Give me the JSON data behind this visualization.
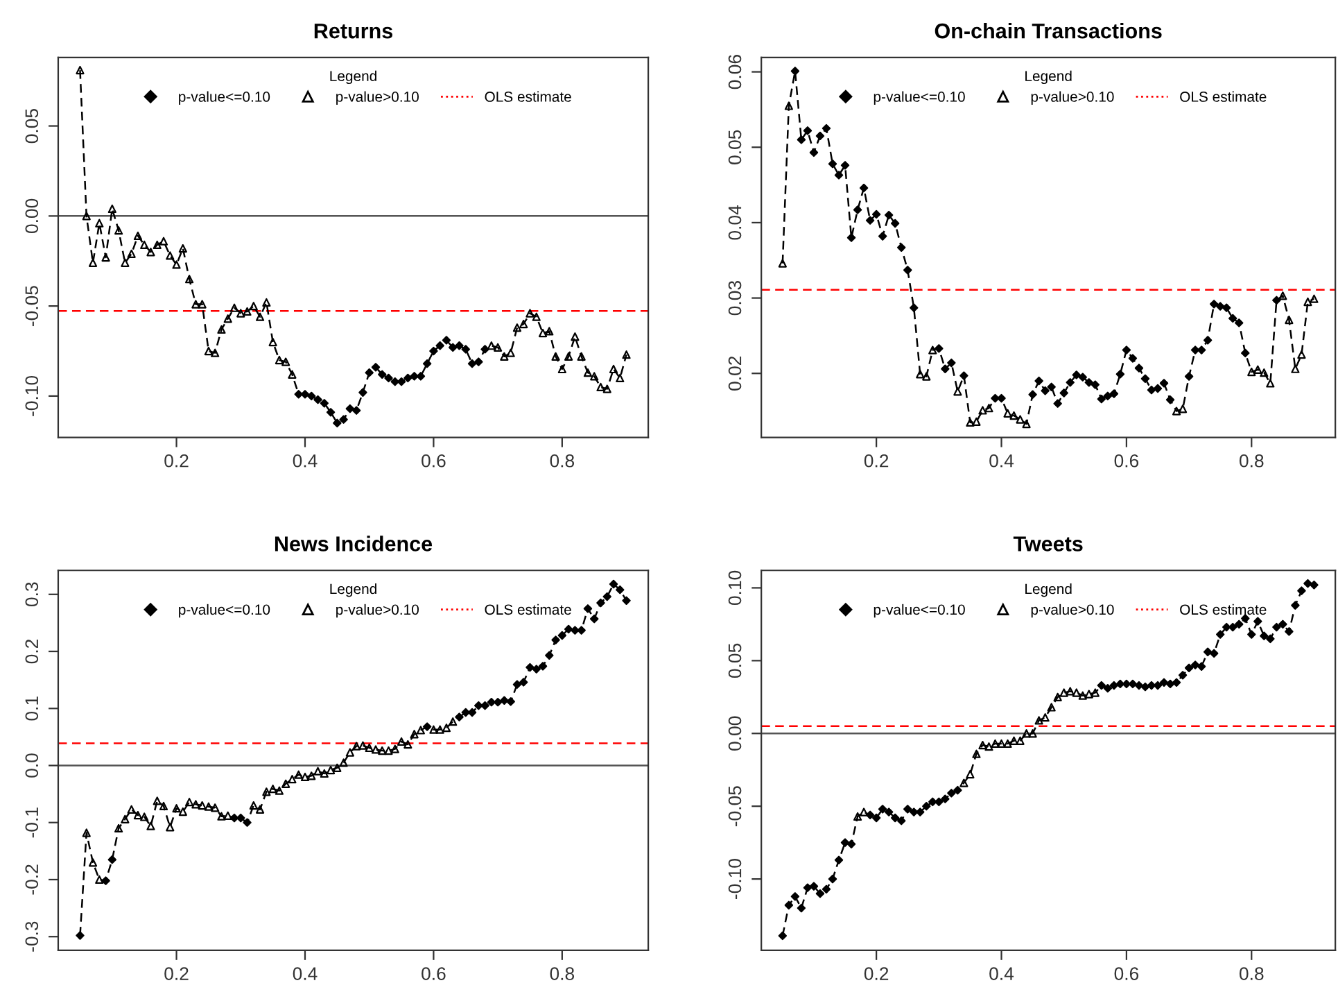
{
  "chart_data": [
    {
      "type": "line",
      "title": "Returns",
      "legend": "top",
      "legend_title": "Legend",
      "grid": false,
      "x": [
        0.05,
        0.06,
        0.07,
        0.08,
        0.09,
        0.1,
        0.11,
        0.12,
        0.13,
        0.14,
        0.15,
        0.16,
        0.17,
        0.18,
        0.19,
        0.2,
        0.21,
        0.22,
        0.23,
        0.24,
        0.25,
        0.26,
        0.27,
        0.28,
        0.29,
        0.3,
        0.31,
        0.32,
        0.33,
        0.34,
        0.35,
        0.36,
        0.37,
        0.38,
        0.39,
        0.4,
        0.41,
        0.42,
        0.43,
        0.44,
        0.45,
        0.46,
        0.47,
        0.48,
        0.49,
        0.5,
        0.51,
        0.52,
        0.53,
        0.54,
        0.55,
        0.56,
        0.57,
        0.58,
        0.59,
        0.6,
        0.61,
        0.62,
        0.63,
        0.64,
        0.65,
        0.66,
        0.67,
        0.68,
        0.69,
        0.7,
        0.71,
        0.72,
        0.73,
        0.74,
        0.75,
        0.76,
        0.77,
        0.78,
        0.79,
        0.8,
        0.81,
        0.82,
        0.83,
        0.84,
        0.85,
        0.86,
        0.87,
        0.88,
        0.89,
        0.9
      ],
      "xlim": [
        0.016,
        0.934
      ],
      "xticks": [
        0.2,
        0.4,
        0.6,
        0.8
      ],
      "ylim": [
        -0.123,
        0.088
      ],
      "yticks": [
        {
          "value": -0.1,
          "label": "-0.10"
        },
        {
          "value": -0.05,
          "label": "-0.05"
        },
        {
          "value": 0.0,
          "label": "0.00"
        },
        {
          "value": 0.05,
          "label": "0.05"
        }
      ],
      "ref_lines": [
        {
          "axis": "y",
          "value": 0.0,
          "color": "#555555",
          "line_style": "solid"
        },
        {
          "axis": "y",
          "value": -0.0527,
          "label": "OLS estimate",
          "color": "#ff0000",
          "line_style": "dashed"
        }
      ],
      "series": [
        {
          "color": "#000000",
          "line_style": "dashed",
          "marker": "none",
          "values": [
            0.081,
            0.0,
            -0.026,
            -0.004,
            -0.023,
            0.004,
            -0.008,
            -0.026,
            -0.021,
            -0.011,
            -0.016,
            -0.02,
            -0.016,
            -0.014,
            -0.022,
            -0.027,
            -0.018,
            -0.035,
            -0.049,
            -0.049,
            -0.075,
            -0.076,
            -0.063,
            -0.057,
            -0.051,
            -0.054,
            -0.053,
            -0.05,
            -0.056,
            -0.048,
            -0.07,
            -0.08,
            -0.081,
            -0.088,
            -0.099,
            -0.099,
            -0.1,
            -0.102,
            -0.104,
            -0.109,
            -0.115,
            -0.113,
            -0.107,
            -0.108,
            -0.098,
            -0.087,
            -0.084,
            -0.088,
            -0.09,
            -0.092,
            -0.092,
            -0.09,
            -0.089,
            -0.089,
            -0.082,
            -0.075,
            -0.072,
            -0.069,
            -0.073,
            -0.072,
            -0.074,
            -0.082,
            -0.081,
            -0.074,
            -0.072,
            -0.073,
            -0.078,
            -0.076,
            -0.062,
            -0.06,
            -0.054,
            -0.056,
            -0.065,
            -0.064,
            -0.078,
            -0.085,
            -0.078,
            -0.067,
            -0.078,
            -0.087,
            -0.089,
            -0.095,
            -0.096,
            -0.085,
            -0.09,
            -0.077
          ]
        },
        {
          "type": "scatter",
          "name": "p-value<=0.10",
          "color": "#000000",
          "marker": "diamond",
          "values": [
            null,
            null,
            null,
            null,
            null,
            null,
            null,
            null,
            null,
            null,
            null,
            null,
            null,
            null,
            null,
            null,
            null,
            null,
            null,
            null,
            null,
            null,
            null,
            null,
            null,
            null,
            null,
            null,
            null,
            null,
            null,
            null,
            null,
            null,
            -0.099,
            -0.099,
            -0.1,
            -0.102,
            -0.104,
            -0.109,
            -0.115,
            -0.113,
            -0.107,
            -0.108,
            -0.098,
            -0.087,
            -0.084,
            -0.088,
            -0.09,
            -0.092,
            -0.092,
            -0.09,
            -0.089,
            -0.089,
            -0.082,
            -0.075,
            -0.072,
            -0.069,
            -0.073,
            -0.072,
            -0.074,
            -0.082,
            -0.081,
            -0.074,
            null,
            null,
            null,
            null,
            null,
            null,
            null,
            null,
            null,
            null,
            null,
            null,
            null,
            null,
            null,
            null,
            null,
            null,
            null,
            null,
            null,
            null
          ]
        },
        {
          "type": "scatter",
          "name": "p-value>0.10",
          "color": "#000000",
          "marker": "triangle",
          "values": [
            0.081,
            0.0,
            -0.026,
            -0.004,
            -0.023,
            0.004,
            -0.008,
            -0.026,
            -0.021,
            -0.011,
            -0.016,
            -0.02,
            -0.016,
            -0.014,
            -0.022,
            -0.027,
            -0.018,
            -0.035,
            -0.049,
            -0.049,
            -0.075,
            -0.076,
            -0.063,
            -0.057,
            -0.051,
            -0.054,
            -0.053,
            -0.05,
            -0.056,
            -0.048,
            -0.07,
            -0.08,
            -0.081,
            -0.088,
            null,
            null,
            null,
            null,
            null,
            null,
            null,
            null,
            null,
            null,
            null,
            null,
            null,
            null,
            null,
            null,
            null,
            null,
            null,
            null,
            null,
            null,
            null,
            null,
            null,
            null,
            null,
            null,
            null,
            null,
            -0.072,
            -0.073,
            -0.078,
            -0.076,
            -0.062,
            -0.06,
            -0.054,
            -0.056,
            -0.065,
            -0.064,
            -0.078,
            -0.085,
            -0.078,
            -0.067,
            -0.078,
            -0.087,
            -0.089,
            -0.095,
            -0.096,
            -0.085,
            -0.09,
            -0.077
          ]
        }
      ]
    },
    {
      "type": "line",
      "title": "On-chain Transactions",
      "legend": "top",
      "legend_title": "Legend",
      "grid": false,
      "x": [
        0.05,
        0.06,
        0.07,
        0.08,
        0.09,
        0.1,
        0.11,
        0.12,
        0.13,
        0.14,
        0.15,
        0.16,
        0.17,
        0.18,
        0.19,
        0.2,
        0.21,
        0.22,
        0.23,
        0.24,
        0.25,
        0.26,
        0.27,
        0.28,
        0.29,
        0.3,
        0.31,
        0.32,
        0.33,
        0.34,
        0.35,
        0.36,
        0.37,
        0.38,
        0.39,
        0.4,
        0.41,
        0.42,
        0.43,
        0.44,
        0.45,
        0.46,
        0.47,
        0.48,
        0.49,
        0.5,
        0.51,
        0.52,
        0.53,
        0.54,
        0.55,
        0.56,
        0.57,
        0.58,
        0.59,
        0.6,
        0.61,
        0.62,
        0.63,
        0.64,
        0.65,
        0.66,
        0.67,
        0.68,
        0.69,
        0.7,
        0.71,
        0.72,
        0.73,
        0.74,
        0.75,
        0.76,
        0.77,
        0.78,
        0.79,
        0.8,
        0.81,
        0.82,
        0.83,
        0.84,
        0.85,
        0.86,
        0.87,
        0.88,
        0.89,
        0.9
      ],
      "xlim": [
        0.016,
        0.934
      ],
      "xticks": [
        0.2,
        0.4,
        0.6,
        0.8
      ],
      "ylim": [
        0.0115,
        0.0619
      ],
      "yticks": [
        {
          "value": 0.02,
          "label": "0.02"
        },
        {
          "value": 0.03,
          "label": "0.03"
        },
        {
          "value": 0.04,
          "label": "0.04"
        },
        {
          "value": 0.05,
          "label": "0.05"
        },
        {
          "value": 0.06,
          "label": "0.06"
        }
      ],
      "ref_lines": [
        {
          "axis": "y",
          "value": 0.0311,
          "label": "OLS estimate",
          "color": "#ff0000",
          "line_style": "dashed"
        }
      ],
      "series": [
        {
          "color": "#000000",
          "line_style": "dashed",
          "marker": "none",
          "values": [
            0.0346,
            0.0555,
            0.0601,
            0.051,
            0.0522,
            0.0493,
            0.0515,
            0.0525,
            0.0478,
            0.0463,
            0.0476,
            0.038,
            0.0417,
            0.0446,
            0.0403,
            0.0411,
            0.0382,
            0.041,
            0.0399,
            0.0367,
            0.0337,
            0.0287,
            0.0199,
            0.0196,
            0.0231,
            0.0233,
            0.0206,
            0.0214,
            0.0176,
            0.0197,
            0.0135,
            0.0136,
            0.0151,
            0.0154,
            0.0167,
            0.0167,
            0.0147,
            0.0144,
            0.0139,
            0.0133,
            0.0172,
            0.019,
            0.0177,
            0.0182,
            0.016,
            0.0174,
            0.0188,
            0.0198,
            0.0195,
            0.0188,
            0.0185,
            0.0166,
            0.017,
            0.0173,
            0.0199,
            0.0231,
            0.022,
            0.0207,
            0.0193,
            0.0178,
            0.018,
            0.0187,
            0.0165,
            0.015,
            0.0153,
            0.0196,
            0.0231,
            0.0231,
            0.0244,
            0.0292,
            0.0289,
            0.0287,
            0.0273,
            0.0267,
            0.0227,
            0.0202,
            0.0205,
            0.0201,
            0.0187,
            0.0297,
            0.0303,
            0.0271,
            0.0206,
            0.0225,
            0.0295,
            0.0299
          ]
        },
        {
          "type": "scatter",
          "name": "p-value<=0.10",
          "color": "#000000",
          "marker": "diamond",
          "values": [
            null,
            null,
            0.0601,
            0.051,
            0.0522,
            0.0493,
            0.0515,
            0.0525,
            0.0478,
            0.0463,
            0.0476,
            0.038,
            0.0417,
            0.0446,
            0.0403,
            0.0411,
            0.0382,
            0.041,
            0.0399,
            0.0367,
            0.0337,
            0.0287,
            null,
            null,
            null,
            0.0233,
            0.0206,
            0.0214,
            null,
            0.0197,
            null,
            null,
            null,
            null,
            0.0167,
            0.0167,
            null,
            null,
            null,
            null,
            0.0172,
            0.019,
            0.0177,
            0.0182,
            0.016,
            0.0174,
            0.0188,
            0.0198,
            0.0195,
            0.0188,
            0.0185,
            0.0166,
            0.017,
            0.0173,
            0.0199,
            0.0231,
            0.022,
            0.0207,
            0.0193,
            0.0178,
            0.018,
            0.0187,
            0.0165,
            null,
            null,
            0.0196,
            0.0231,
            0.0231,
            0.0244,
            0.0292,
            0.0289,
            0.0287,
            0.0273,
            0.0267,
            0.0227,
            null,
            null,
            null,
            null,
            0.0297,
            null,
            null,
            null,
            null,
            null,
            null
          ]
        },
        {
          "type": "scatter",
          "name": "p-value>0.10",
          "color": "#000000",
          "marker": "triangle",
          "values": [
            0.0346,
            0.0555,
            null,
            null,
            null,
            null,
            null,
            null,
            null,
            null,
            null,
            null,
            null,
            null,
            null,
            null,
            null,
            null,
            null,
            null,
            null,
            null,
            0.0199,
            0.0196,
            0.0231,
            null,
            null,
            null,
            0.0176,
            null,
            0.0135,
            0.0136,
            0.0151,
            0.0154,
            null,
            null,
            0.0147,
            0.0144,
            0.0139,
            0.0133,
            null,
            null,
            null,
            null,
            null,
            null,
            null,
            null,
            null,
            null,
            null,
            null,
            null,
            null,
            null,
            null,
            null,
            null,
            null,
            null,
            null,
            null,
            null,
            0.015,
            0.0153,
            null,
            null,
            null,
            null,
            null,
            null,
            null,
            null,
            null,
            null,
            0.0202,
            0.0205,
            0.0201,
            0.0187,
            null,
            0.0303,
            0.0271,
            0.0206,
            0.0225,
            0.0295,
            0.0299
          ]
        }
      ]
    },
    {
      "type": "line",
      "title": "News Incidence",
      "legend": "top",
      "legend_title": "Legend",
      "grid": false,
      "x": [
        0.05,
        0.06,
        0.07,
        0.08,
        0.09,
        0.1,
        0.11,
        0.12,
        0.13,
        0.14,
        0.15,
        0.16,
        0.17,
        0.18,
        0.19,
        0.2,
        0.21,
        0.22,
        0.23,
        0.24,
        0.25,
        0.26,
        0.27,
        0.28,
        0.29,
        0.3,
        0.31,
        0.32,
        0.33,
        0.34,
        0.35,
        0.36,
        0.37,
        0.38,
        0.39,
        0.4,
        0.41,
        0.42,
        0.43,
        0.44,
        0.45,
        0.46,
        0.47,
        0.48,
        0.49,
        0.5,
        0.51,
        0.52,
        0.53,
        0.54,
        0.55,
        0.56,
        0.57,
        0.58,
        0.59,
        0.6,
        0.61,
        0.62,
        0.63,
        0.64,
        0.65,
        0.66,
        0.67,
        0.68,
        0.69,
        0.7,
        0.71,
        0.72,
        0.73,
        0.74,
        0.75,
        0.76,
        0.77,
        0.78,
        0.79,
        0.8,
        0.81,
        0.82,
        0.83,
        0.84,
        0.85,
        0.86,
        0.87,
        0.88,
        0.89,
        0.9
      ],
      "xlim": [
        0.016,
        0.934
      ],
      "xticks": [
        0.2,
        0.4,
        0.6,
        0.8
      ],
      "ylim": [
        -0.324,
        0.342
      ],
      "yticks": [
        {
          "value": -0.3,
          "label": "-0.3"
        },
        {
          "value": -0.2,
          "label": "-0.2"
        },
        {
          "value": -0.1,
          "label": "-0.1"
        },
        {
          "value": 0.0,
          "label": "0.0"
        },
        {
          "value": 0.1,
          "label": "0.1"
        },
        {
          "value": 0.2,
          "label": "0.2"
        },
        {
          "value": 0.3,
          "label": "0.3"
        }
      ],
      "ref_lines": [
        {
          "axis": "y",
          "value": 0.0,
          "color": "#555555",
          "line_style": "solid"
        },
        {
          "axis": "y",
          "value": 0.039,
          "label": "OLS estimate",
          "color": "#ff0000",
          "line_style": "dashed"
        }
      ],
      "series": [
        {
          "color": "#000000",
          "line_style": "dashed",
          "marker": "none",
          "values": [
            -0.298,
            -0.118,
            -0.17,
            -0.2,
            -0.202,
            -0.165,
            -0.11,
            -0.094,
            -0.077,
            -0.087,
            -0.09,
            -0.106,
            -0.062,
            -0.071,
            -0.108,
            -0.075,
            -0.081,
            -0.064,
            -0.068,
            -0.07,
            -0.072,
            -0.074,
            -0.089,
            -0.088,
            -0.092,
            -0.092,
            -0.1,
            -0.07,
            -0.077,
            -0.046,
            -0.041,
            -0.044,
            -0.032,
            -0.024,
            -0.016,
            -0.02,
            -0.018,
            -0.01,
            -0.014,
            -0.008,
            -0.004,
            0.005,
            0.023,
            0.034,
            0.035,
            0.031,
            0.028,
            0.026,
            0.026,
            0.029,
            0.042,
            0.037,
            0.055,
            0.062,
            0.068,
            0.063,
            0.063,
            0.066,
            0.077,
            0.085,
            0.093,
            0.093,
            0.105,
            0.105,
            0.111,
            0.111,
            0.114,
            0.112,
            0.142,
            0.146,
            0.172,
            0.169,
            0.174,
            0.193,
            0.22,
            0.228,
            0.239,
            0.237,
            0.237,
            0.275,
            0.257,
            0.285,
            0.296,
            0.318,
            0.308,
            0.289
          ]
        },
        {
          "type": "scatter",
          "name": "p-value<=0.10",
          "color": "#000000",
          "marker": "diamond",
          "values": [
            -0.298,
            null,
            null,
            null,
            -0.202,
            -0.165,
            null,
            null,
            null,
            null,
            null,
            null,
            null,
            null,
            null,
            null,
            null,
            null,
            null,
            null,
            null,
            null,
            null,
            null,
            -0.092,
            -0.092,
            -0.1,
            null,
            null,
            null,
            null,
            null,
            null,
            null,
            null,
            null,
            null,
            null,
            null,
            null,
            null,
            null,
            null,
            null,
            null,
            null,
            null,
            null,
            null,
            null,
            null,
            null,
            null,
            null,
            0.068,
            null,
            null,
            null,
            null,
            0.085,
            0.093,
            0.093,
            0.105,
            0.105,
            0.111,
            0.111,
            0.114,
            0.112,
            0.142,
            0.146,
            0.172,
            0.169,
            0.174,
            0.193,
            0.22,
            0.228,
            0.239,
            0.237,
            0.237,
            0.275,
            0.257,
            0.285,
            0.296,
            0.318,
            0.308,
            0.289
          ]
        },
        {
          "type": "scatter",
          "name": "p-value>0.10",
          "color": "#000000",
          "marker": "triangle",
          "values": [
            null,
            -0.118,
            -0.17,
            -0.2,
            null,
            null,
            -0.11,
            -0.094,
            -0.077,
            -0.087,
            -0.09,
            -0.106,
            -0.062,
            -0.071,
            -0.108,
            -0.075,
            -0.081,
            -0.064,
            -0.068,
            -0.07,
            -0.072,
            -0.074,
            -0.089,
            -0.088,
            null,
            null,
            null,
            -0.07,
            -0.077,
            -0.046,
            -0.041,
            -0.044,
            -0.032,
            -0.024,
            -0.016,
            -0.02,
            -0.018,
            -0.01,
            -0.014,
            -0.008,
            -0.004,
            0.005,
            0.023,
            0.034,
            0.035,
            0.031,
            0.028,
            0.026,
            0.026,
            0.029,
            0.042,
            0.037,
            0.055,
            0.062,
            null,
            0.063,
            0.063,
            0.066,
            0.077,
            null,
            null,
            null,
            null,
            null,
            null,
            null,
            null,
            null,
            null,
            null,
            null,
            null,
            null,
            null,
            null,
            null,
            null,
            null,
            null,
            null,
            null,
            null,
            null,
            null,
            null,
            null
          ]
        }
      ]
    },
    {
      "type": "line",
      "title": "Tweets",
      "legend": "top",
      "legend_title": "Legend",
      "grid": false,
      "x": [
        0.05,
        0.06,
        0.07,
        0.08,
        0.09,
        0.1,
        0.11,
        0.12,
        0.13,
        0.14,
        0.15,
        0.16,
        0.17,
        0.18,
        0.19,
        0.2,
        0.21,
        0.22,
        0.23,
        0.24,
        0.25,
        0.26,
        0.27,
        0.28,
        0.29,
        0.3,
        0.31,
        0.32,
        0.33,
        0.34,
        0.35,
        0.36,
        0.37,
        0.38,
        0.39,
        0.4,
        0.41,
        0.42,
        0.43,
        0.44,
        0.45,
        0.46,
        0.47,
        0.48,
        0.49,
        0.5,
        0.51,
        0.52,
        0.53,
        0.54,
        0.55,
        0.56,
        0.57,
        0.58,
        0.59,
        0.6,
        0.61,
        0.62,
        0.63,
        0.64,
        0.65,
        0.66,
        0.67,
        0.68,
        0.69,
        0.7,
        0.71,
        0.72,
        0.73,
        0.74,
        0.75,
        0.76,
        0.77,
        0.78,
        0.79,
        0.8,
        0.81,
        0.82,
        0.83,
        0.84,
        0.85,
        0.86,
        0.87,
        0.88,
        0.89,
        0.9
      ],
      "xlim": [
        0.016,
        0.934
      ],
      "xticks": [
        0.2,
        0.4,
        0.6,
        0.8
      ],
      "ylim": [
        -0.149,
        0.112
      ],
      "yticks": [
        {
          "value": -0.1,
          "label": "-0.10"
        },
        {
          "value": -0.05,
          "label": "-0.05"
        },
        {
          "value": 0.0,
          "label": "0.00"
        },
        {
          "value": 0.05,
          "label": "0.05"
        },
        {
          "value": 0.1,
          "label": "0.10"
        }
      ],
      "ref_lines": [
        {
          "axis": "y",
          "value": 0.0,
          "color": "#555555",
          "line_style": "solid"
        },
        {
          "axis": "y",
          "value": 0.005,
          "label": "OLS estimate",
          "color": "#ff0000",
          "line_style": "dashed"
        }
      ],
      "series": [
        {
          "color": "#000000",
          "line_style": "dashed",
          "marker": "none",
          "values": [
            -0.139,
            -0.118,
            -0.112,
            -0.12,
            -0.106,
            -0.105,
            -0.11,
            -0.107,
            -0.1,
            -0.087,
            -0.075,
            -0.076,
            -0.057,
            -0.054,
            -0.056,
            -0.058,
            -0.052,
            -0.054,
            -0.058,
            -0.06,
            -0.052,
            -0.054,
            -0.054,
            -0.05,
            -0.047,
            -0.047,
            -0.045,
            -0.041,
            -0.039,
            -0.034,
            -0.028,
            -0.014,
            -0.008,
            -0.009,
            -0.007,
            -0.007,
            -0.007,
            -0.005,
            -0.005,
            0.0,
            0.0,
            0.009,
            0.011,
            0.018,
            0.025,
            0.028,
            0.029,
            0.028,
            0.026,
            0.027,
            0.028,
            0.033,
            0.031,
            0.033,
            0.034,
            0.034,
            0.034,
            0.033,
            0.032,
            0.033,
            0.033,
            0.035,
            0.034,
            0.035,
            0.04,
            0.045,
            0.047,
            0.046,
            0.056,
            0.055,
            0.068,
            0.073,
            0.073,
            0.075,
            0.079,
            0.068,
            0.077,
            0.067,
            0.065,
            0.073,
            0.075,
            0.07,
            0.088,
            0.098,
            0.103,
            0.102
          ]
        },
        {
          "type": "scatter",
          "name": "p-value<=0.10",
          "color": "#000000",
          "marker": "diamond",
          "values": [
            -0.139,
            -0.118,
            -0.112,
            -0.12,
            -0.106,
            -0.105,
            -0.11,
            -0.107,
            -0.1,
            -0.087,
            -0.075,
            -0.076,
            null,
            null,
            -0.056,
            -0.058,
            -0.052,
            -0.054,
            -0.058,
            -0.06,
            -0.052,
            -0.054,
            -0.054,
            -0.05,
            -0.047,
            -0.047,
            -0.045,
            -0.041,
            -0.039,
            null,
            null,
            null,
            null,
            null,
            null,
            null,
            null,
            null,
            null,
            null,
            null,
            null,
            null,
            null,
            null,
            null,
            null,
            null,
            null,
            null,
            null,
            0.033,
            0.031,
            0.033,
            0.034,
            0.034,
            0.034,
            0.033,
            0.032,
            0.033,
            0.033,
            0.035,
            0.034,
            0.035,
            0.04,
            0.045,
            0.047,
            0.046,
            0.056,
            0.055,
            0.068,
            0.073,
            0.073,
            0.075,
            0.079,
            0.068,
            0.077,
            0.067,
            0.065,
            0.073,
            0.075,
            0.07,
            0.088,
            0.098,
            0.103,
            0.102
          ]
        },
        {
          "type": "scatter",
          "name": "p-value>0.10",
          "color": "#000000",
          "marker": "triangle",
          "values": [
            null,
            null,
            null,
            null,
            null,
            null,
            null,
            null,
            null,
            null,
            null,
            null,
            -0.057,
            -0.054,
            null,
            null,
            null,
            null,
            null,
            null,
            null,
            null,
            null,
            null,
            null,
            null,
            null,
            null,
            null,
            -0.034,
            -0.028,
            -0.014,
            -0.008,
            -0.009,
            -0.007,
            -0.007,
            -0.007,
            -0.005,
            -0.005,
            0.0,
            0.0,
            0.009,
            0.011,
            0.018,
            0.025,
            0.028,
            0.029,
            0.028,
            0.026,
            0.027,
            0.028,
            null,
            null,
            null,
            null,
            null,
            null,
            null,
            null,
            null,
            null,
            null,
            null,
            null,
            null,
            null,
            null,
            null,
            null,
            null,
            null,
            null,
            null,
            null,
            null,
            null,
            null,
            null,
            null,
            null,
            null,
            null,
            null,
            null,
            null,
            null
          ]
        }
      ]
    }
  ]
}
